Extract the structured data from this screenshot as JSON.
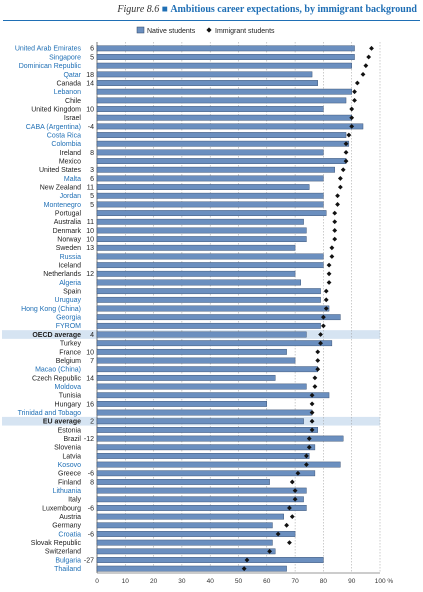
{
  "figure": {
    "number": "Figure 8.6",
    "title": "Ambitious career expectations, by immigrant background"
  },
  "chart_data": {
    "type": "bar",
    "orientation": "horizontal",
    "legend": {
      "placement": "top",
      "native": "Native students",
      "immigrant": "Immigrant students"
    },
    "xlim": [
      0,
      100
    ],
    "xticks": [
      "0",
      "10",
      "20",
      "30",
      "40",
      "50",
      "60",
      "70",
      "80",
      "90",
      "100 %"
    ],
    "grid": true,
    "colors": {
      "bar": "#6b8fbf",
      "bar_stroke": "#2c4466",
      "marker": "#111111",
      "label_text": "#222222",
      "label_blue": "#1f6fb5",
      "highlight": "#d6e4f2"
    },
    "rows": [
      {
        "label": "United Arab Emirates",
        "diff": "6",
        "native": 91,
        "immigrant": 97,
        "blue": true
      },
      {
        "label": "Singapore",
        "diff": "5",
        "native": 91,
        "immigrant": 96,
        "blue": true
      },
      {
        "label": "Dominican Republic",
        "diff": "",
        "native": 90,
        "immigrant": 95,
        "blue": true
      },
      {
        "label": "Qatar",
        "diff": "18",
        "native": 76,
        "immigrant": 94,
        "blue": true
      },
      {
        "label": "Canada",
        "diff": "14",
        "native": 78,
        "immigrant": 92,
        "blue": false
      },
      {
        "label": "Lebanon",
        "diff": "",
        "native": 90,
        "immigrant": 91,
        "blue": true
      },
      {
        "label": "Chile",
        "diff": "",
        "native": 88,
        "immigrant": 91,
        "blue": false
      },
      {
        "label": "United Kingdom",
        "diff": "10",
        "native": 80,
        "immigrant": 90,
        "blue": false
      },
      {
        "label": "Israel",
        "diff": "",
        "native": 90,
        "immigrant": 90,
        "blue": false
      },
      {
        "label": "CABA (Argentina)",
        "diff": "-4",
        "native": 94,
        "immigrant": 90,
        "blue": true
      },
      {
        "label": "Costa Rica",
        "diff": "",
        "native": 88,
        "immigrant": 89,
        "blue": true
      },
      {
        "label": "Colombia",
        "diff": "",
        "native": 89,
        "immigrant": 88,
        "blue": true
      },
      {
        "label": "Ireland",
        "diff": "8",
        "native": 80,
        "immigrant": 88,
        "blue": false
      },
      {
        "label": "Mexico",
        "diff": "",
        "native": 88,
        "immigrant": 88,
        "blue": false
      },
      {
        "label": "United States",
        "diff": "3",
        "native": 84,
        "immigrant": 87,
        "blue": false
      },
      {
        "label": "Malta",
        "diff": "6",
        "native": 80,
        "immigrant": 86,
        "blue": true
      },
      {
        "label": "New Zealand",
        "diff": "11",
        "native": 75,
        "immigrant": 86,
        "blue": false
      },
      {
        "label": "Jordan",
        "diff": "5",
        "native": 80,
        "immigrant": 85,
        "blue": true
      },
      {
        "label": "Montenegro",
        "diff": "5",
        "native": 80,
        "immigrant": 85,
        "blue": true
      },
      {
        "label": "Portugal",
        "diff": "",
        "native": 81,
        "immigrant": 84,
        "blue": false
      },
      {
        "label": "Australia",
        "diff": "11",
        "native": 73,
        "immigrant": 84,
        "blue": false
      },
      {
        "label": "Denmark",
        "diff": "10",
        "native": 74,
        "immigrant": 84,
        "blue": false
      },
      {
        "label": "Norway",
        "diff": "10",
        "native": 74,
        "immigrant": 84,
        "blue": false
      },
      {
        "label": "Sweden",
        "diff": "13",
        "native": 70,
        "immigrant": 83,
        "blue": false
      },
      {
        "label": "Russia",
        "diff": "",
        "native": 80,
        "immigrant": 83,
        "blue": true
      },
      {
        "label": "Iceland",
        "diff": "",
        "native": 80,
        "immigrant": 82,
        "blue": false
      },
      {
        "label": "Netherlands",
        "diff": "12",
        "native": 70,
        "immigrant": 82,
        "blue": false
      },
      {
        "label": "Algeria",
        "diff": "",
        "native": 72,
        "immigrant": 82,
        "blue": true
      },
      {
        "label": "Spain",
        "diff": "",
        "native": 79,
        "immigrant": 81,
        "blue": false
      },
      {
        "label": "Uruguay",
        "diff": "",
        "native": 79,
        "immigrant": 81,
        "blue": true
      },
      {
        "label": "Hong Kong (China)",
        "diff": "",
        "native": 82,
        "immigrant": 81,
        "blue": true
      },
      {
        "label": "Georgia",
        "diff": "",
        "native": 86,
        "immigrant": 80,
        "blue": true
      },
      {
        "label": "FYROM",
        "diff": "",
        "native": 79,
        "immigrant": 80,
        "blue": true
      },
      {
        "label": "OECD average",
        "diff": "4",
        "native": 74,
        "immigrant": 79,
        "blue": false,
        "highlight": true,
        "bold": true
      },
      {
        "label": "Turkey",
        "diff": "",
        "native": 83,
        "immigrant": 79,
        "blue": false
      },
      {
        "label": "France",
        "diff": "10",
        "native": 67,
        "immigrant": 78,
        "blue": false
      },
      {
        "label": "Belgium",
        "diff": "7",
        "native": 70,
        "immigrant": 78,
        "blue": false
      },
      {
        "label": "Macao (China)",
        "diff": "",
        "native": 78,
        "immigrant": 78,
        "blue": true
      },
      {
        "label": "Czech Republic",
        "diff": "14",
        "native": 63,
        "immigrant": 77,
        "blue": false
      },
      {
        "label": "Moldova",
        "diff": "",
        "native": 74,
        "immigrant": 77,
        "blue": true
      },
      {
        "label": "Tunisia",
        "diff": "",
        "native": 82,
        "immigrant": 76,
        "blue": false
      },
      {
        "label": "Hungary",
        "diff": "16",
        "native": 60,
        "immigrant": 76,
        "blue": false
      },
      {
        "label": "Trinidad and Tobago",
        "diff": "",
        "native": 76,
        "immigrant": 76,
        "blue": true
      },
      {
        "label": "EU average",
        "diff": "2",
        "native": 73,
        "immigrant": 76,
        "blue": false,
        "highlight": true,
        "bold": true
      },
      {
        "label": "Estonia",
        "diff": "",
        "native": 78,
        "immigrant": 76,
        "blue": false
      },
      {
        "label": "Brazil",
        "diff": "-12",
        "native": 87,
        "immigrant": 75,
        "blue": false
      },
      {
        "label": "Slovenia",
        "diff": "",
        "native": 77,
        "immigrant": 75,
        "blue": false
      },
      {
        "label": "Latvia",
        "diff": "",
        "native": 75,
        "immigrant": 74,
        "blue": false
      },
      {
        "label": "Kosovo",
        "diff": "",
        "native": 86,
        "immigrant": 74,
        "blue": true
      },
      {
        "label": "Greece",
        "diff": "-6",
        "native": 77,
        "immigrant": 71,
        "blue": false
      },
      {
        "label": "Finland",
        "diff": "8",
        "native": 61,
        "immigrant": 69,
        "blue": false
      },
      {
        "label": "Lithuania",
        "diff": "",
        "native": 74,
        "immigrant": 70,
        "blue": true
      },
      {
        "label": "Italy",
        "diff": "",
        "native": 73,
        "immigrant": 70,
        "blue": false
      },
      {
        "label": "Luxembourg",
        "diff": "-6",
        "native": 74,
        "immigrant": 68,
        "blue": false
      },
      {
        "label": "Austria",
        "diff": "",
        "native": 66,
        "immigrant": 69,
        "blue": false
      },
      {
        "label": "Germany",
        "diff": "",
        "native": 62,
        "immigrant": 67,
        "blue": false
      },
      {
        "label": "Croatia",
        "diff": "-6",
        "native": 70,
        "immigrant": 64,
        "blue": true
      },
      {
        "label": "Slovak Republic",
        "diff": "",
        "native": 62,
        "immigrant": 68,
        "blue": false
      },
      {
        "label": "Switzerland",
        "diff": "",
        "native": 63,
        "immigrant": 61,
        "blue": false
      },
      {
        "label": "Bulgaria",
        "diff": "-27",
        "native": 80,
        "immigrant": 53,
        "blue": true
      },
      {
        "label": "Thailand",
        "diff": "",
        "native": 67,
        "immigrant": 52,
        "blue": true
      }
    ]
  }
}
